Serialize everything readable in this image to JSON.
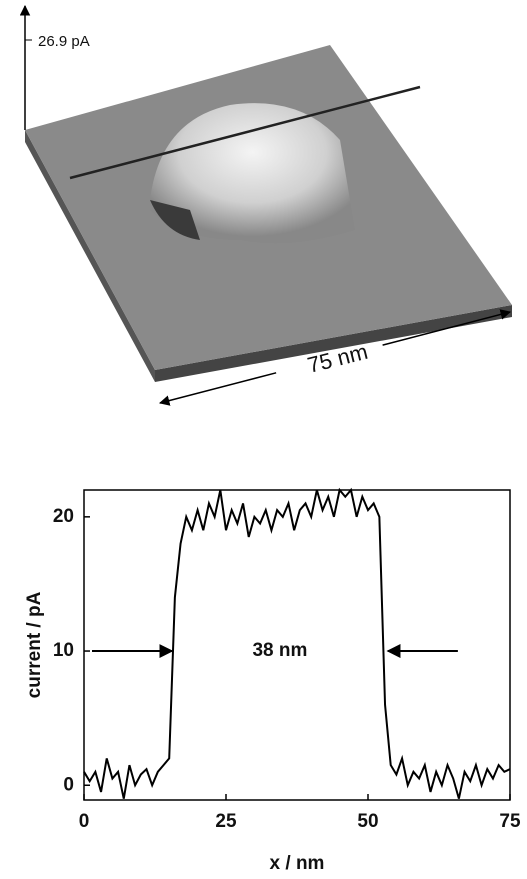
{
  "image": {
    "z_label": "26.9 pA",
    "scale_label": "75 nm"
  },
  "chart_data": {
    "type": "line",
    "xlabel": "x / nm",
    "ylabel": "current / pA",
    "x": [
      0,
      1,
      2,
      3,
      4,
      5,
      6,
      7,
      8,
      9,
      10,
      11,
      12,
      13,
      14,
      15,
      16,
      17,
      18,
      19,
      20,
      21,
      22,
      23,
      24,
      25,
      26,
      27,
      28,
      29,
      30,
      31,
      32,
      33,
      34,
      35,
      36,
      37,
      38,
      39,
      40,
      41,
      42,
      43,
      44,
      45,
      46,
      47,
      48,
      49,
      50,
      51,
      52,
      53,
      54,
      55,
      56,
      57,
      58,
      59,
      60,
      61,
      62,
      63,
      64,
      65,
      66,
      67,
      68,
      69,
      70,
      71,
      72,
      73,
      74,
      75
    ],
    "series": [
      {
        "color": "#000000",
        "values": [
          1,
          0.3,
          1,
          -0.5,
          2,
          0.5,
          1,
          -1,
          1.5,
          0,
          0.8,
          1.2,
          0,
          1,
          1.5,
          2,
          14,
          18,
          20,
          19,
          20.5,
          19,
          21,
          20,
          22,
          19,
          20.5,
          19.5,
          21,
          18.5,
          20,
          19.5,
          20.5,
          19,
          20.5,
          20,
          21,
          19,
          20.5,
          21,
          20,
          22,
          20.5,
          21.5,
          20,
          22,
          21.5,
          22,
          20,
          21.5,
          20.5,
          21,
          20,
          6,
          1.5,
          0.8,
          2,
          0,
          1,
          0.5,
          1.5,
          -0.5,
          1,
          0,
          1.5,
          0.5,
          -1,
          1,
          0.3,
          1.5,
          0,
          1.2,
          0.5,
          1.5,
          1,
          1.2
        ]
      }
    ],
    "xlim": [
      0,
      75
    ],
    "ylim": [
      -1.1,
      22
    ],
    "xticks": [
      0,
      25,
      50,
      75
    ],
    "yticks": [
      0,
      10,
      20
    ],
    "annotation": {
      "text": "38 nm",
      "y": 10,
      "x_start": 15.5,
      "x_end": 53.5
    }
  }
}
